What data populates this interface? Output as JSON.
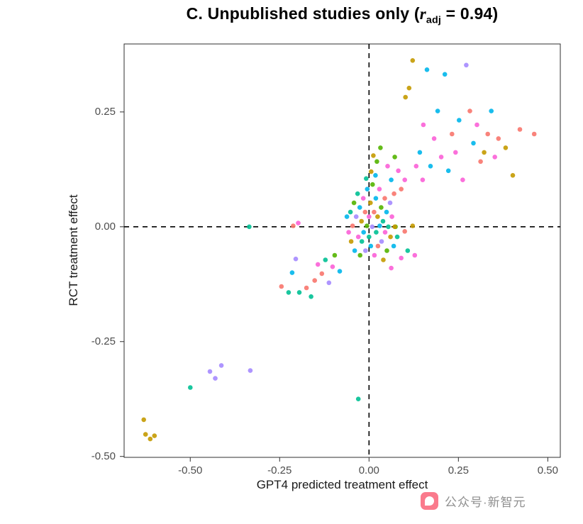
{
  "title": {
    "prefix": "C. Unpublished studies only (",
    "r": "r",
    "sub": "adj",
    "suffix": " = 0.94)"
  },
  "watermark": {
    "text": "公众号·新智元"
  },
  "chart_data": {
    "type": "scatter",
    "title": "C. Unpublished studies only (r_adj = 0.94)",
    "r_adj": 0.94,
    "xlabel": "GPT4 predicted treatment effect",
    "ylabel": "RCT treatment effect",
    "xlim": [
      -0.685,
      0.535
    ],
    "ylim": [
      -0.502,
      0.398
    ],
    "x_ticks": [
      -0.5,
      -0.25,
      0,
      0.25,
      0.5
    ],
    "x_tick_labels": [
      "-0.50",
      "-0.25",
      "0.00",
      "0.25",
      "0.50"
    ],
    "y_ticks": [
      0.25,
      0,
      -0.25,
      -0.5
    ],
    "y_tick_labels": [
      "0.25",
      "0.00",
      "-0.25",
      "-0.50"
    ],
    "reference_lines": {
      "vertical_x": 0,
      "horizontal_y": 0,
      "style": "dashed",
      "color": "#000000"
    },
    "grid": false,
    "legend": "none",
    "colors": [
      "#F8766D",
      "#C49A00",
      "#53B400",
      "#00C094",
      "#00B6EB",
      "#A58AFF",
      "#FB61D7"
    ],
    "points": [
      [
        -0.63,
        -0.42,
        1
      ],
      [
        -0.625,
        -0.452,
        1
      ],
      [
        -0.612,
        -0.462,
        1
      ],
      [
        -0.6,
        -0.455,
        1
      ],
      [
        -0.5,
        -0.35,
        3
      ],
      [
        -0.445,
        -0.315,
        5
      ],
      [
        -0.43,
        -0.33,
        5
      ],
      [
        -0.413,
        -0.302,
        5
      ],
      [
        -0.332,
        -0.313,
        5
      ],
      [
        -0.335,
        0.0,
        3
      ],
      [
        -0.03,
        -0.375,
        3
      ],
      [
        -0.245,
        -0.13,
        0
      ],
      [
        -0.225,
        -0.143,
        3
      ],
      [
        -0.215,
        -0.1,
        4
      ],
      [
        -0.205,
        -0.07,
        5
      ],
      [
        -0.195,
        -0.143,
        3
      ],
      [
        -0.175,
        -0.133,
        0
      ],
      [
        -0.162,
        -0.152,
        3
      ],
      [
        -0.152,
        -0.117,
        0
      ],
      [
        -0.143,
        -0.082,
        6
      ],
      [
        -0.132,
        -0.102,
        0
      ],
      [
        -0.122,
        -0.072,
        3
      ],
      [
        -0.112,
        -0.122,
        5
      ],
      [
        -0.102,
        -0.087,
        6
      ],
      [
        -0.096,
        -0.062,
        2
      ],
      [
        -0.082,
        -0.097,
        4
      ],
      [
        -0.212,
        0.002,
        0
      ],
      [
        -0.198,
        0.008,
        6
      ],
      [
        -0.062,
        0.022,
        4
      ],
      [
        -0.057,
        -0.012,
        6
      ],
      [
        -0.052,
        0.032,
        3
      ],
      [
        -0.05,
        -0.032,
        1
      ],
      [
        -0.046,
        0.002,
        0
      ],
      [
        -0.042,
        0.052,
        2
      ],
      [
        -0.04,
        -0.052,
        4
      ],
      [
        -0.036,
        0.022,
        5
      ],
      [
        -0.032,
        0.072,
        3
      ],
      [
        -0.03,
        -0.022,
        6
      ],
      [
        -0.026,
        0.042,
        4
      ],
      [
        -0.025,
        -0.062,
        2
      ],
      [
        -0.021,
        0.012,
        1
      ],
      [
        -0.02,
        -0.032,
        3
      ],
      [
        -0.016,
        0.062,
        6
      ],
      [
        -0.015,
        -0.012,
        4
      ],
      [
        -0.011,
        0.032,
        0
      ],
      [
        -0.01,
        -0.052,
        5
      ],
      [
        -0.006,
        0.002,
        2
      ],
      [
        -0.005,
        0.082,
        4
      ],
      [
        0.0,
        0.022,
        6
      ],
      [
        0.0,
        -0.022,
        3
      ],
      [
        0.004,
        0.052,
        1
      ],
      [
        0.005,
        -0.042,
        4
      ],
      [
        0.009,
        0.0,
        5
      ],
      [
        0.01,
        0.092,
        2
      ],
      [
        0.014,
        0.032,
        0
      ],
      [
        0.015,
        -0.062,
        6
      ],
      [
        0.019,
        0.062,
        4
      ],
      [
        0.02,
        -0.012,
        3
      ],
      [
        0.024,
        0.022,
        1
      ],
      [
        0.025,
        -0.042,
        0
      ],
      [
        0.029,
        0.082,
        6
      ],
      [
        0.03,
        0.002,
        4
      ],
      [
        0.034,
        0.042,
        2
      ],
      [
        0.035,
        -0.032,
        5
      ],
      [
        0.039,
        0.012,
        3
      ],
      [
        0.04,
        -0.072,
        1
      ],
      [
        0.044,
        0.062,
        0
      ],
      [
        0.045,
        -0.012,
        6
      ],
      [
        0.049,
        0.032,
        4
      ],
      [
        0.05,
        -0.052,
        2
      ],
      [
        0.054,
        0.0,
        3
      ],
      [
        0.059,
        0.052,
        5
      ],
      [
        0.06,
        -0.022,
        1
      ],
      [
        0.064,
        0.022,
        6
      ],
      [
        0.069,
        -0.042,
        4
      ],
      [
        0.07,
        0.072,
        0
      ],
      [
        0.074,
        0.0,
        2
      ],
      [
        0.079,
        -0.022,
        3
      ],
      [
        -0.008,
        0.105,
        3
      ],
      [
        0.006,
        0.12,
        1
      ],
      [
        0.018,
        0.112,
        4
      ],
      [
        0.022,
        0.142,
        2
      ],
      [
        0.032,
        0.172,
        2
      ],
      [
        0.012,
        0.155,
        1
      ],
      [
        0.09,
        -0.068,
        6
      ],
      [
        0.108,
        -0.052,
        3
      ],
      [
        0.128,
        -0.062,
        6
      ],
      [
        0.062,
        -0.09,
        6
      ],
      [
        0.052,
        0.132,
        6
      ],
      [
        0.062,
        0.102,
        4
      ],
      [
        0.072,
        0.152,
        2
      ],
      [
        0.082,
        0.122,
        6
      ],
      [
        0.09,
        0.082,
        0
      ],
      [
        0.1,
        0.102,
        6
      ],
      [
        0.102,
        0.282,
        1
      ],
      [
        0.112,
        0.302,
        1
      ],
      [
        0.122,
        0.362,
        1
      ],
      [
        0.132,
        0.132,
        6
      ],
      [
        0.142,
        0.162,
        4
      ],
      [
        0.15,
        0.102,
        6
      ],
      [
        0.152,
        0.222,
        6
      ],
      [
        0.162,
        0.342,
        4
      ],
      [
        0.172,
        0.132,
        4
      ],
      [
        0.182,
        0.192,
        6
      ],
      [
        0.192,
        0.252,
        4
      ],
      [
        0.202,
        0.152,
        6
      ],
      [
        0.212,
        0.332,
        4
      ],
      [
        0.222,
        0.122,
        4
      ],
      [
        0.232,
        0.202,
        0
      ],
      [
        0.242,
        0.162,
        6
      ],
      [
        0.252,
        0.232,
        4
      ],
      [
        0.262,
        0.102,
        6
      ],
      [
        0.272,
        0.352,
        5
      ],
      [
        0.282,
        0.252,
        0
      ],
      [
        0.292,
        0.182,
        4
      ],
      [
        0.302,
        0.222,
        6
      ],
      [
        0.312,
        0.142,
        0
      ],
      [
        0.322,
        0.162,
        1
      ],
      [
        0.332,
        0.202,
        0
      ],
      [
        0.342,
        0.252,
        4
      ],
      [
        0.352,
        0.152,
        6
      ],
      [
        0.362,
        0.192,
        0
      ],
      [
        0.382,
        0.172,
        1
      ],
      [
        0.402,
        0.112,
        1
      ],
      [
        0.422,
        0.212,
        0
      ],
      [
        0.462,
        0.202,
        0
      ],
      [
        0.072,
        0.0,
        1
      ],
      [
        0.1,
        -0.01,
        0
      ],
      [
        0.122,
        0.002,
        1
      ]
    ]
  }
}
